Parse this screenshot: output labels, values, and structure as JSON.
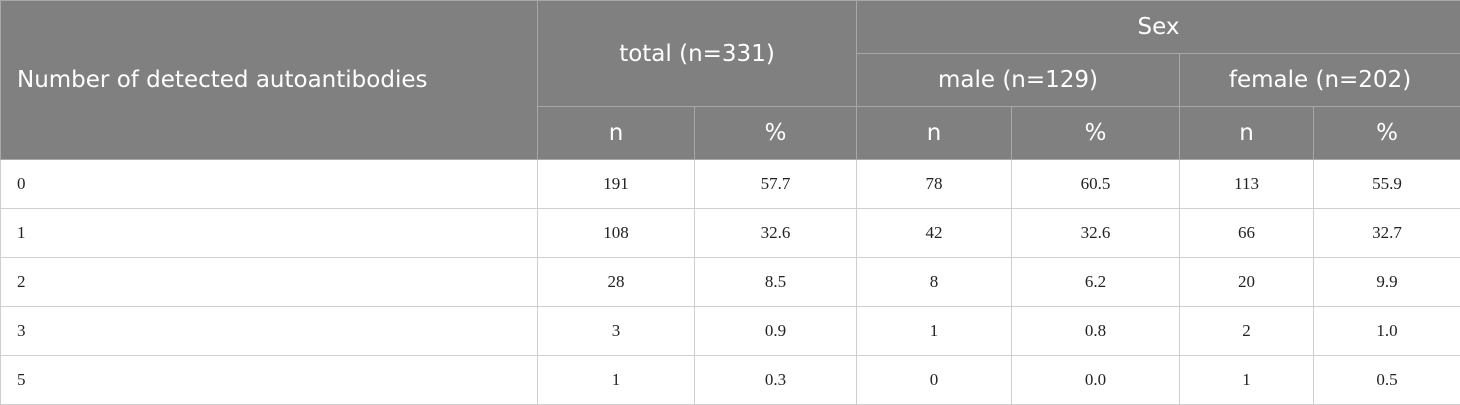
{
  "header": {
    "row_label": "Number of detected autoantibodies",
    "total": "total (n=331)",
    "sex": "Sex",
    "male": "male (n=129)",
    "female": "female (n=202)",
    "sub": [
      "n",
      "%",
      "n",
      "%",
      "n",
      "%"
    ]
  },
  "table": {
    "rows": [
      [
        "0",
        "191",
        "57.7",
        "78",
        "60.5",
        "113",
        "55.9"
      ],
      [
        "1",
        "108",
        "32.6",
        "42",
        "32.6",
        "66",
        "32.7"
      ],
      [
        "2",
        "28",
        "8.5",
        "8",
        "6.2",
        "20",
        "9.9"
      ],
      [
        "3",
        "3",
        "0.9",
        "1",
        "0.8",
        "2",
        "1.0"
      ],
      [
        "5",
        "1",
        "0.3",
        "0",
        "0.0",
        "1",
        "0.5"
      ]
    ]
  }
}
